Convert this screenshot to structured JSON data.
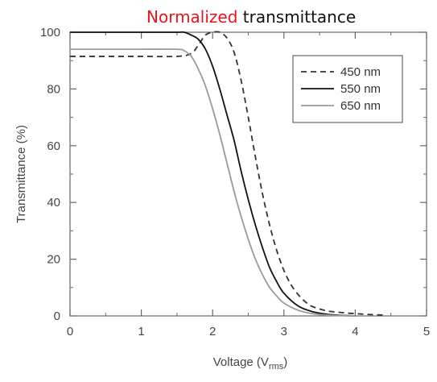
{
  "chart_data": {
    "type": "line",
    "title_parts": [
      {
        "text": "Normalized",
        "color": "#e8141b"
      },
      {
        "text": " transmittance",
        "color": "#111111"
      }
    ],
    "xlabel": "Voltage (V",
    "xlabel_sub": "rms",
    "xlabel_end": ")",
    "ylabel": "Transmittance (%)",
    "xlim": [
      0,
      5
    ],
    "ylim": [
      0,
      100
    ],
    "x_ticks": [
      "0",
      "1",
      "2",
      "3",
      "4",
      "5"
    ],
    "y_ticks": [
      "0",
      "20",
      "40",
      "60",
      "80",
      "100"
    ],
    "grid": false,
    "legend_position": "top-right",
    "series": [
      {
        "name": "450 nm",
        "color": "#333333",
        "style": "dashed",
        "x": [
          0,
          0.5,
          1.0,
          1.5,
          1.7,
          1.8,
          1.9,
          2.0,
          2.1,
          2.2,
          2.3,
          2.4,
          2.5,
          2.6,
          2.7,
          2.8,
          2.9,
          3.0,
          3.1,
          3.2,
          3.3,
          3.4,
          3.6,
          3.8,
          4.0,
          4.2,
          4.4
        ],
        "y": [
          91.5,
          91.5,
          91.5,
          91.5,
          92.5,
          95.5,
          99,
          100,
          100,
          98,
          93,
          83,
          70,
          56,
          43,
          32,
          23,
          16,
          11,
          7.5,
          5,
          3.3,
          1.8,
          1.2,
          0.8,
          0.5,
          0.3
        ]
      },
      {
        "name": "550 nm",
        "color": "#111111",
        "style": "solid",
        "x": [
          0,
          0.5,
          1.0,
          1.5,
          1.6,
          1.7,
          1.8,
          1.9,
          2.0,
          2.1,
          2.2,
          2.3,
          2.4,
          2.5,
          2.6,
          2.7,
          2.8,
          2.9,
          3.0,
          3.2,
          3.4,
          3.6,
          3.8,
          4.0
        ],
        "y": [
          100,
          100,
          100,
          100,
          100,
          99,
          97.5,
          94,
          88,
          80,
          71,
          62,
          51,
          41,
          32,
          24,
          17,
          12,
          8,
          3.5,
          1.5,
          0.6,
          0.2,
          0
        ]
      },
      {
        "name": "650 nm",
        "color": "#9a9a9a",
        "style": "solid",
        "x": [
          0,
          0.5,
          1.0,
          1.5,
          1.6,
          1.7,
          1.8,
          1.9,
          2.0,
          2.1,
          2.2,
          2.3,
          2.4,
          2.5,
          2.6,
          2.7,
          2.8,
          2.9,
          3.0,
          3.2,
          3.4,
          3.6,
          3.8,
          4.0
        ],
        "y": [
          94,
          94,
          94,
          94,
          93.5,
          91.5,
          87,
          81,
          73,
          64,
          54,
          44,
          35,
          27,
          20,
          14.5,
          10,
          7,
          4.5,
          2,
          0.8,
          0.3,
          0.1,
          0
        ]
      }
    ]
  }
}
